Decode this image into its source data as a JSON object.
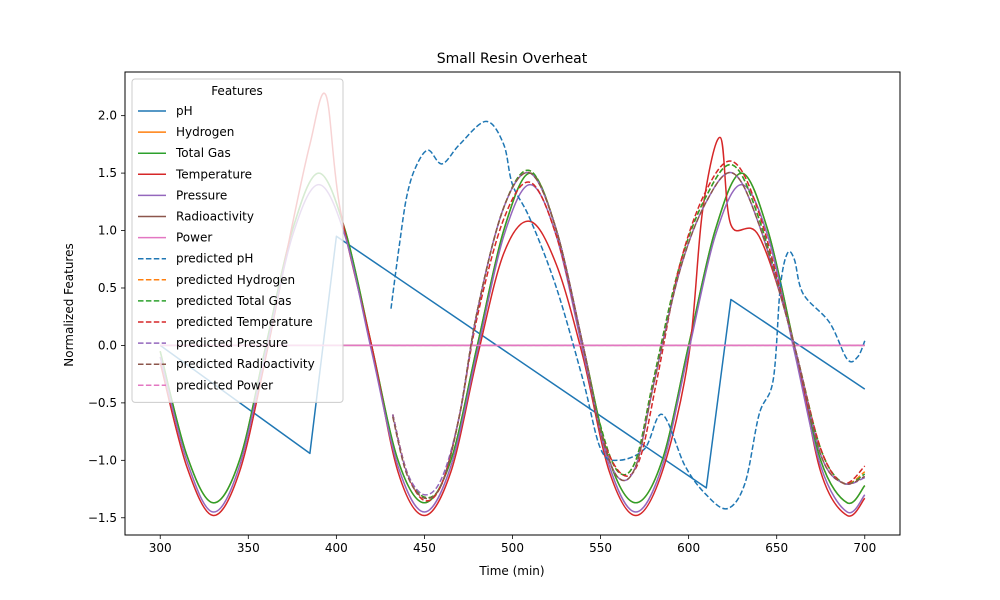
{
  "chart_data": {
    "type": "line",
    "title": "Small Resin Overheat",
    "xlabel": "Time (min)",
    "ylabel": "Normalized Features",
    "xlim": [
      280,
      720
    ],
    "ylim": [
      -1.65,
      2.38
    ],
    "xticks": [
      300,
      350,
      400,
      450,
      500,
      550,
      600,
      650,
      700
    ],
    "xtick_labels": [
      "300",
      "350",
      "400",
      "450",
      "500",
      "550",
      "600",
      "650",
      "700"
    ],
    "yticks": [
      -1.5,
      -1.0,
      -0.5,
      0.0,
      0.5,
      1.0,
      1.5,
      2.0
    ],
    "ytick_labels": [
      "−1.5",
      "−1.0",
      "−0.5",
      "0.0",
      "0.5",
      "1.0",
      "1.5",
      "2.0"
    ],
    "grid": false,
    "legend": {
      "title": "Features",
      "placement": "upper-left"
    },
    "series": [
      {
        "name": "pH",
        "color": "#1f77b4",
        "style": "solid",
        "points": [
          [
            300,
            0.0
          ],
          [
            385,
            -0.94
          ],
          [
            400,
            0.95
          ],
          [
            610,
            -1.24
          ],
          [
            624,
            0.4
          ],
          [
            700,
            -0.38
          ]
        ]
      },
      {
        "name": "Hydrogen",
        "color": "#ff7f0e",
        "style": "solid",
        "points": [
          [
            300,
            -0.05
          ],
          [
            315,
            -0.95
          ],
          [
            330,
            -1.37
          ],
          [
            345,
            -1.0
          ],
          [
            360,
            0.0
          ],
          [
            375,
            1.0
          ],
          [
            390,
            1.5
          ],
          [
            405,
            1.0
          ],
          [
            420,
            0.0
          ],
          [
            435,
            -1.0
          ],
          [
            450,
            -1.37
          ],
          [
            465,
            -1.0
          ],
          [
            480,
            0.0
          ],
          [
            495,
            1.0
          ],
          [
            510,
            1.5
          ],
          [
            525,
            1.0
          ],
          [
            540,
            0.0
          ],
          [
            555,
            -1.0
          ],
          [
            570,
            -1.37
          ],
          [
            585,
            -1.0
          ],
          [
            600,
            0.0
          ],
          [
            615,
            1.0
          ],
          [
            630,
            1.5
          ],
          [
            645,
            1.0
          ],
          [
            660,
            0.0
          ],
          [
            675,
            -1.0
          ],
          [
            690,
            -1.37
          ],
          [
            700,
            -1.22
          ]
        ]
      },
      {
        "name": "Total Gas",
        "color": "#2ca02c",
        "style": "solid",
        "points": [
          [
            300,
            -0.05
          ],
          [
            315,
            -0.95
          ],
          [
            330,
            -1.37
          ],
          [
            345,
            -1.0
          ],
          [
            360,
            0.0
          ],
          [
            375,
            1.0
          ],
          [
            390,
            1.5
          ],
          [
            405,
            1.0
          ],
          [
            420,
            0.0
          ],
          [
            435,
            -1.0
          ],
          [
            450,
            -1.37
          ],
          [
            465,
            -1.0
          ],
          [
            480,
            0.0
          ],
          [
            495,
            1.0
          ],
          [
            510,
            1.5
          ],
          [
            525,
            1.0
          ],
          [
            540,
            0.0
          ],
          [
            555,
            -1.0
          ],
          [
            570,
            -1.37
          ],
          [
            585,
            -1.0
          ],
          [
            600,
            0.0
          ],
          [
            615,
            1.0
          ],
          [
            630,
            1.5
          ],
          [
            645,
            1.0
          ],
          [
            660,
            0.0
          ],
          [
            675,
            -1.0
          ],
          [
            690,
            -1.37
          ],
          [
            700,
            -1.22
          ]
        ]
      },
      {
        "name": "Temperature",
        "color": "#d62728",
        "style": "solid",
        "points": [
          [
            300,
            -0.15
          ],
          [
            315,
            -1.05
          ],
          [
            330,
            -1.48
          ],
          [
            345,
            -1.1
          ],
          [
            360,
            -0.1
          ],
          [
            375,
            1.05
          ],
          [
            385,
            1.75
          ],
          [
            394,
            2.18
          ],
          [
            402,
            1.2
          ],
          [
            420,
            0.0
          ],
          [
            435,
            -1.1
          ],
          [
            450,
            -1.48
          ],
          [
            465,
            -1.1
          ],
          [
            480,
            -0.1
          ],
          [
            495,
            0.8
          ],
          [
            510,
            1.08
          ],
          [
            525,
            0.7
          ],
          [
            540,
            -0.1
          ],
          [
            555,
            -1.1
          ],
          [
            570,
            -1.48
          ],
          [
            585,
            -1.1
          ],
          [
            600,
            -0.1
          ],
          [
            608,
            1.18
          ],
          [
            618,
            1.81
          ],
          [
            624,
            1.05
          ],
          [
            640,
            0.95
          ],
          [
            660,
            0.0
          ],
          [
            675,
            -1.1
          ],
          [
            690,
            -1.48
          ],
          [
            700,
            -1.33
          ]
        ]
      },
      {
        "name": "Pressure",
        "color": "#9467bd",
        "style": "solid",
        "points": [
          [
            300,
            -0.1
          ],
          [
            315,
            -1.0
          ],
          [
            330,
            -1.45
          ],
          [
            345,
            -1.05
          ],
          [
            360,
            -0.05
          ],
          [
            375,
            0.95
          ],
          [
            390,
            1.4
          ],
          [
            405,
            0.95
          ],
          [
            420,
            -0.05
          ],
          [
            435,
            -1.05
          ],
          [
            450,
            -1.45
          ],
          [
            465,
            -1.05
          ],
          [
            480,
            -0.05
          ],
          [
            495,
            0.95
          ],
          [
            510,
            1.4
          ],
          [
            525,
            0.95
          ],
          [
            540,
            -0.05
          ],
          [
            555,
            -1.05
          ],
          [
            570,
            -1.45
          ],
          [
            585,
            -1.05
          ],
          [
            600,
            -0.05
          ],
          [
            615,
            0.95
          ],
          [
            630,
            1.4
          ],
          [
            645,
            0.95
          ],
          [
            660,
            -0.05
          ],
          [
            675,
            -1.05
          ],
          [
            690,
            -1.45
          ],
          [
            700,
            -1.3
          ]
        ]
      },
      {
        "name": "Radioactivity",
        "color": "#8c564b",
        "style": "solid",
        "points": [
          [
            300,
            0.0
          ],
          [
            700,
            0.0
          ]
        ]
      },
      {
        "name": "Power",
        "color": "#e377c2",
        "style": "solid",
        "points": [
          [
            300,
            0.0
          ],
          [
            700,
            0.0
          ]
        ]
      },
      {
        "name": "predicted pH",
        "color": "#1f77b4",
        "style": "dashed",
        "points": [
          [
            431,
            0.32
          ],
          [
            436,
            0.9
          ],
          [
            440,
            1.3
          ],
          [
            445,
            1.55
          ],
          [
            452,
            1.7
          ],
          [
            460,
            1.58
          ],
          [
            470,
            1.75
          ],
          [
            485,
            1.95
          ],
          [
            495,
            1.75
          ],
          [
            500,
            1.4
          ],
          [
            510,
            1.1
          ],
          [
            525,
            0.5
          ],
          [
            540,
            -0.3
          ],
          [
            550,
            -0.9
          ],
          [
            560,
            -1.0
          ],
          [
            575,
            -0.9
          ],
          [
            585,
            -0.6
          ],
          [
            598,
            -1.05
          ],
          [
            610,
            -1.3
          ],
          [
            622,
            -1.42
          ],
          [
            632,
            -1.2
          ],
          [
            640,
            -0.6
          ],
          [
            648,
            -0.3
          ],
          [
            652,
            0.5
          ],
          [
            656,
            0.8
          ],
          [
            660,
            0.75
          ],
          [
            665,
            0.45
          ],
          [
            680,
            0.2
          ],
          [
            690,
            -0.12
          ],
          [
            696,
            -0.1
          ],
          [
            700,
            0.04
          ]
        ]
      },
      {
        "name": "predicted Hydrogen",
        "color": "#ff7f0e",
        "style": "dashed",
        "points": [
          [
            432,
            -0.6
          ],
          [
            440,
            -1.1
          ],
          [
            450,
            -1.32
          ],
          [
            460,
            -1.2
          ],
          [
            470,
            -0.6
          ],
          [
            480,
            0.3
          ],
          [
            495,
            1.2
          ],
          [
            510,
            1.52
          ],
          [
            525,
            1.0
          ],
          [
            540,
            0.0
          ],
          [
            550,
            -0.7
          ],
          [
            560,
            -1.1
          ],
          [
            570,
            -1.0
          ],
          [
            580,
            -0.3
          ],
          [
            595,
            0.7
          ],
          [
            610,
            1.3
          ],
          [
            625,
            1.57
          ],
          [
            640,
            1.1
          ],
          [
            660,
            0.0
          ],
          [
            675,
            -0.9
          ],
          [
            688,
            -1.2
          ],
          [
            700,
            -1.1
          ]
        ]
      },
      {
        "name": "predicted Total Gas",
        "color": "#2ca02c",
        "style": "dashed",
        "points": [
          [
            432,
            -0.6
          ],
          [
            440,
            -1.1
          ],
          [
            450,
            -1.32
          ],
          [
            460,
            -1.2
          ],
          [
            470,
            -0.6
          ],
          [
            480,
            0.3
          ],
          [
            495,
            1.2
          ],
          [
            510,
            1.52
          ],
          [
            525,
            1.0
          ],
          [
            540,
            0.0
          ],
          [
            550,
            -0.7
          ],
          [
            560,
            -1.1
          ],
          [
            570,
            -1.0
          ],
          [
            580,
            -0.3
          ],
          [
            595,
            0.7
          ],
          [
            610,
            1.3
          ],
          [
            625,
            1.57
          ],
          [
            640,
            1.1
          ],
          [
            660,
            0.0
          ],
          [
            675,
            -0.9
          ],
          [
            688,
            -1.2
          ],
          [
            700,
            -1.12
          ]
        ]
      },
      {
        "name": "predicted Temperature",
        "color": "#d62728",
        "style": "dashed",
        "points": [
          [
            432,
            -0.6
          ],
          [
            440,
            -1.1
          ],
          [
            450,
            -1.35
          ],
          [
            460,
            -1.2
          ],
          [
            470,
            -0.6
          ],
          [
            480,
            0.25
          ],
          [
            495,
            1.1
          ],
          [
            510,
            1.42
          ],
          [
            525,
            0.95
          ],
          [
            540,
            0.0
          ],
          [
            550,
            -0.75
          ],
          [
            562,
            -1.12
          ],
          [
            572,
            -1.0
          ],
          [
            582,
            -0.3
          ],
          [
            595,
            0.7
          ],
          [
            610,
            1.35
          ],
          [
            625,
            1.6
          ],
          [
            640,
            1.15
          ],
          [
            660,
            0.0
          ],
          [
            675,
            -0.9
          ],
          [
            688,
            -1.2
          ],
          [
            700,
            -1.05
          ]
        ]
      },
      {
        "name": "predicted Pressure",
        "color": "#9467bd",
        "style": "dashed",
        "points": [
          [
            432,
            -0.6
          ],
          [
            440,
            -1.1
          ],
          [
            450,
            -1.3
          ],
          [
            460,
            -1.15
          ],
          [
            470,
            -0.6
          ],
          [
            480,
            0.3
          ],
          [
            495,
            1.2
          ],
          [
            510,
            1.5
          ],
          [
            525,
            1.0
          ],
          [
            540,
            0.0
          ],
          [
            550,
            -0.75
          ],
          [
            560,
            -1.15
          ],
          [
            570,
            -1.05
          ],
          [
            580,
            -0.35
          ],
          [
            595,
            0.65
          ],
          [
            610,
            1.25
          ],
          [
            625,
            1.5
          ],
          [
            640,
            1.05
          ],
          [
            660,
            0.0
          ],
          [
            675,
            -0.95
          ],
          [
            688,
            -1.2
          ],
          [
            700,
            -1.15
          ]
        ]
      },
      {
        "name": "predicted Radioactivity",
        "color": "#8c564b",
        "style": "dashed",
        "points": [
          [
            432,
            -0.62
          ],
          [
            440,
            -1.12
          ],
          [
            450,
            -1.33
          ],
          [
            460,
            -1.2
          ],
          [
            470,
            -0.6
          ],
          [
            480,
            0.3
          ],
          [
            495,
            1.2
          ],
          [
            510,
            1.5
          ],
          [
            525,
            1.0
          ],
          [
            540,
            0.0
          ],
          [
            550,
            -0.75
          ],
          [
            560,
            -1.15
          ],
          [
            570,
            -1.05
          ],
          [
            580,
            -0.35
          ],
          [
            595,
            0.65
          ],
          [
            610,
            1.25
          ],
          [
            625,
            1.5
          ],
          [
            640,
            1.05
          ],
          [
            660,
            0.0
          ],
          [
            675,
            -0.95
          ],
          [
            688,
            -1.2
          ],
          [
            700,
            -1.14
          ]
        ]
      },
      {
        "name": "predicted Power",
        "color": "#e377c2",
        "style": "dashed",
        "points": [
          [
            432,
            0.0
          ],
          [
            700,
            0.0
          ]
        ]
      }
    ]
  }
}
